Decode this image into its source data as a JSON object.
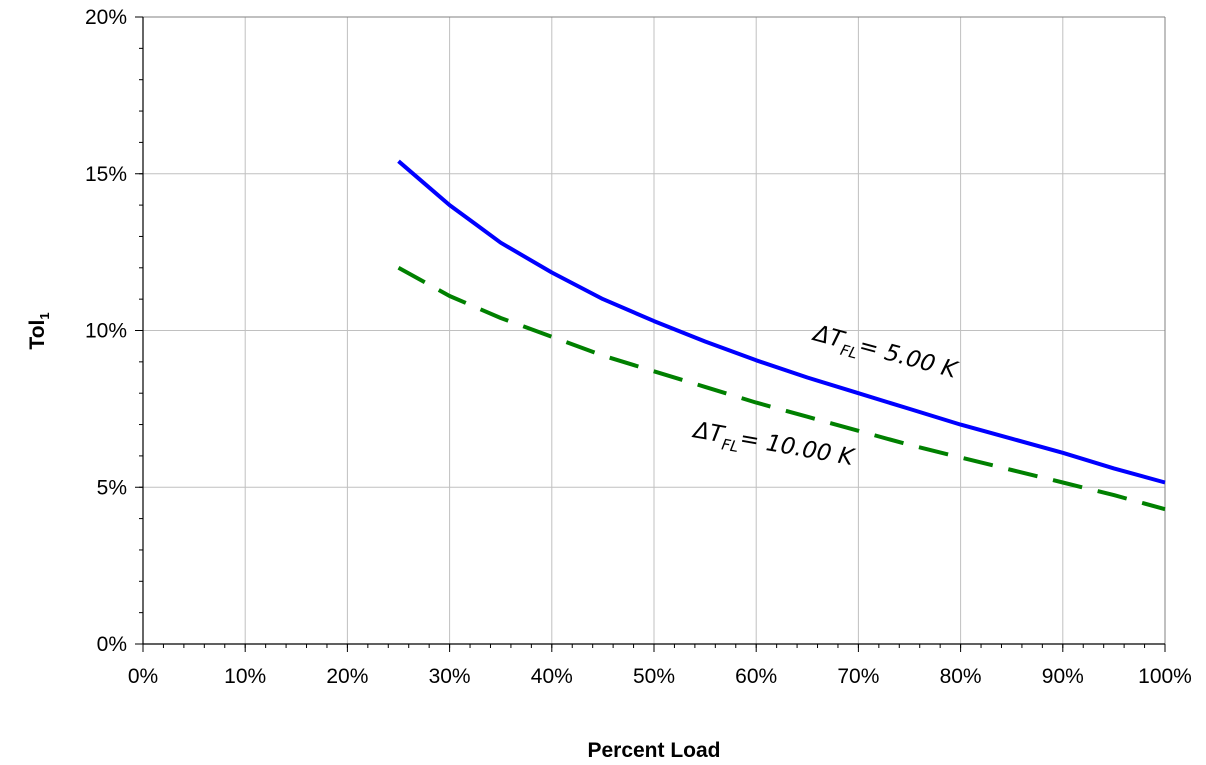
{
  "chart_data": {
    "type": "line",
    "title": "",
    "xlabel": "Percent Load",
    "ylabel": "Tol",
    "ylabel_subscript": "1",
    "xlim": [
      0,
      100
    ],
    "ylim": [
      0,
      20
    ],
    "x_ticks": [
      "0%",
      "10%",
      "20%",
      "30%",
      "40%",
      "50%",
      "60%",
      "70%",
      "80%",
      "90%",
      "100%"
    ],
    "y_ticks": [
      "0%",
      "5%",
      "10%",
      "15%",
      "20%"
    ],
    "grid": true,
    "legend": "none",
    "series": [
      {
        "color": "#0000ff",
        "style": "solid",
        "x": [
          25,
          27.5,
          30,
          32.5,
          35,
          40,
          45,
          50,
          55,
          60,
          65,
          70,
          75,
          80,
          85,
          90,
          95,
          100
        ],
        "y": [
          15.4,
          14.7,
          14.0,
          13.4,
          12.8,
          11.85,
          11.0,
          10.3,
          9.65,
          9.05,
          8.5,
          8.0,
          7.5,
          7.0,
          6.55,
          6.1,
          5.6,
          5.15
        ]
      },
      {
        "color": "#008000",
        "style": "dashed",
        "x": [
          25,
          30,
          35,
          40,
          45,
          50,
          55,
          60,
          65,
          70,
          75,
          80,
          85,
          90,
          95,
          100
        ],
        "y": [
          12.0,
          11.1,
          10.4,
          9.8,
          9.2,
          8.7,
          8.2,
          7.7,
          7.25,
          6.8,
          6.35,
          5.95,
          5.55,
          5.15,
          4.75,
          4.3
        ]
      }
    ],
    "annotations": [
      {
        "prefix": "ΔT",
        "sub": "FL",
        "suffix": "= 5.00 K",
        "x": 65.5,
        "y": 9.7,
        "rotate": 15
      },
      {
        "prefix": "ΔT",
        "sub": "FL",
        "suffix": "= 10.00 K",
        "x": 53.8,
        "y": 6.6,
        "rotate": 10
      }
    ]
  }
}
